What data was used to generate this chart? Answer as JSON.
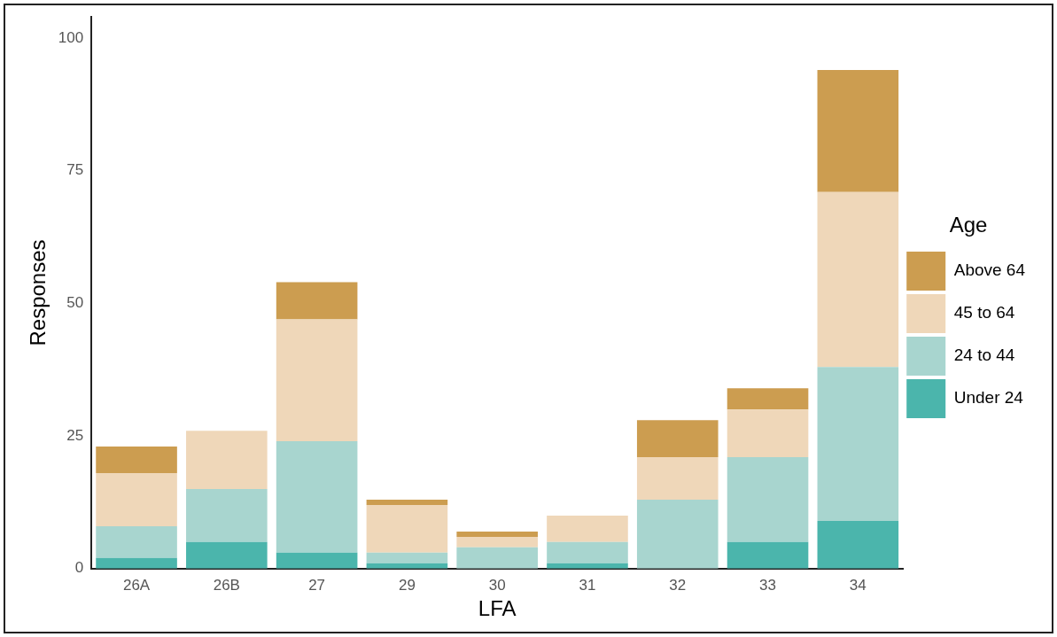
{
  "chart_data": {
    "type": "bar",
    "stacked": true,
    "xlabel": "LFA",
    "ylabel": "Responses",
    "legend_title": "Age",
    "legend": "right",
    "grid": false,
    "categories": [
      "26A",
      "26B",
      "27",
      "29",
      "30",
      "31",
      "32",
      "33",
      "34"
    ],
    "ylim": [
      0,
      104
    ],
    "yticks": [
      0,
      25,
      50,
      75,
      100
    ],
    "series": [
      {
        "name": "Under 24",
        "color": "#4bb5ac",
        "values": [
          2,
          5,
          3,
          1,
          0,
          1,
          0,
          5,
          9
        ]
      },
      {
        "name": "24 to 44",
        "color": "#a8d5cf",
        "values": [
          6,
          10,
          21,
          2,
          4,
          4,
          13,
          16,
          29
        ]
      },
      {
        "name": "45 to 64",
        "color": "#efd7b9",
        "values": [
          10,
          11,
          23,
          9,
          2,
          5,
          8,
          9,
          33
        ]
      },
      {
        "name": "Above 64",
        "color": "#cc9d50",
        "values": [
          5,
          0,
          7,
          1,
          1,
          0,
          7,
          4,
          23
        ]
      }
    ]
  }
}
